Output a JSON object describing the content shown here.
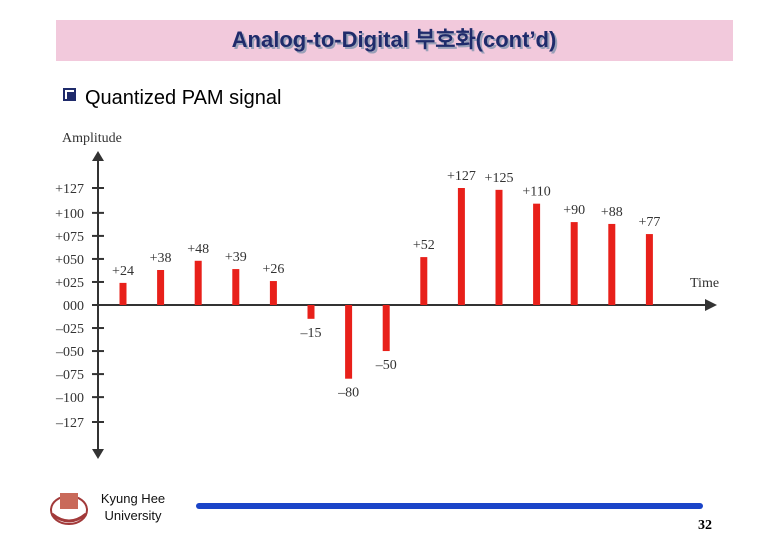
{
  "header": {
    "title": "Analog-to-Digital 부호화(cont’d)"
  },
  "bullet": "Quantized PAM signal",
  "chart_data": {
    "type": "bar",
    "y_label": "Amplitude",
    "x_label": "Time",
    "values": [
      24,
      38,
      48,
      39,
      26,
      -15,
      -80,
      -50,
      52,
      127,
      125,
      110,
      90,
      88,
      77
    ],
    "value_labels": [
      "+24",
      "+38",
      "+48",
      "+39",
      "+26",
      "–15",
      "–80",
      "–50",
      "+52",
      "+127",
      "+125",
      "+110",
      "+90",
      "+88",
      "+77"
    ],
    "color": "#e8201a",
    "ylim": [
      -165,
      165
    ],
    "yticks": [
      {
        "value": 127,
        "label": "+127"
      },
      {
        "value": 100,
        "label": "+100"
      },
      {
        "value": 75,
        "label": "+075"
      },
      {
        "value": 50,
        "label": "+050"
      },
      {
        "value": 25,
        "label": "+025"
      },
      {
        "value": 0,
        "label": "000"
      },
      {
        "value": -25,
        "label": "–025"
      },
      {
        "value": -50,
        "label": "–050"
      },
      {
        "value": -75,
        "label": "–075"
      },
      {
        "value": -100,
        "label": "–100"
      },
      {
        "value": -127,
        "label": "–127"
      }
    ],
    "grid": false
  },
  "footer": {
    "institution": [
      "Kyung Hee",
      "University"
    ],
    "page_number": 32
  }
}
